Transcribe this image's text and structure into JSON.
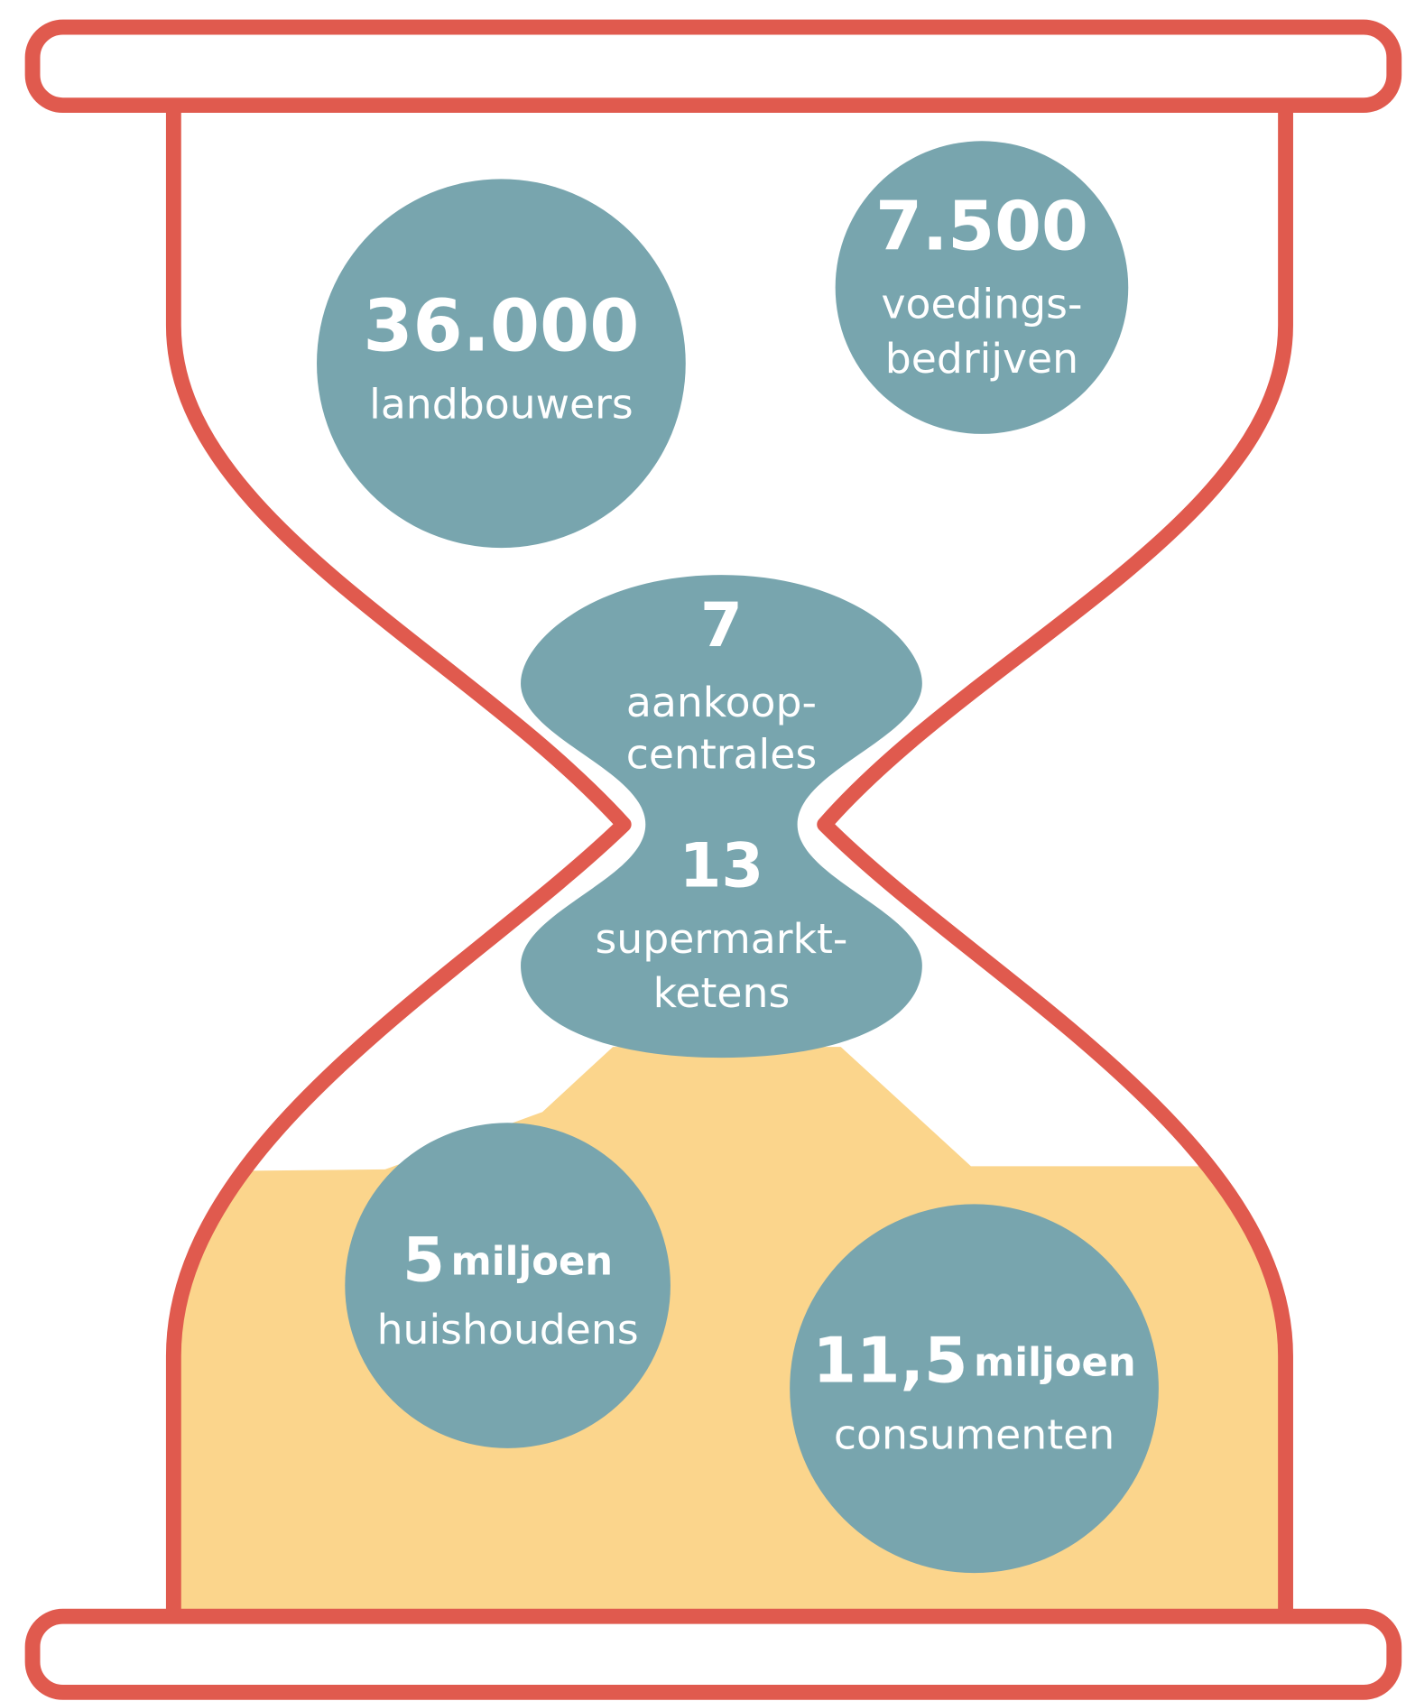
{
  "stats": [
    {
      "number": "36.000",
      "label_lines": [
        "landbouwers"
      ]
    },
    {
      "number": "7.500",
      "label_lines": [
        "voedings-",
        "bedrijven"
      ]
    },
    {
      "number": "7",
      "label_lines": [
        "aankoop-",
        "centrales"
      ]
    },
    {
      "number": "13",
      "label_lines": [
        "supermarkt-",
        "ketens"
      ]
    },
    {
      "number": "5",
      "unit": "miljoen",
      "label_lines": [
        "huishoudens"
      ]
    },
    {
      "number": "11,5",
      "unit": "miljoen",
      "label_lines": [
        "consumenten"
      ]
    }
  ]
}
